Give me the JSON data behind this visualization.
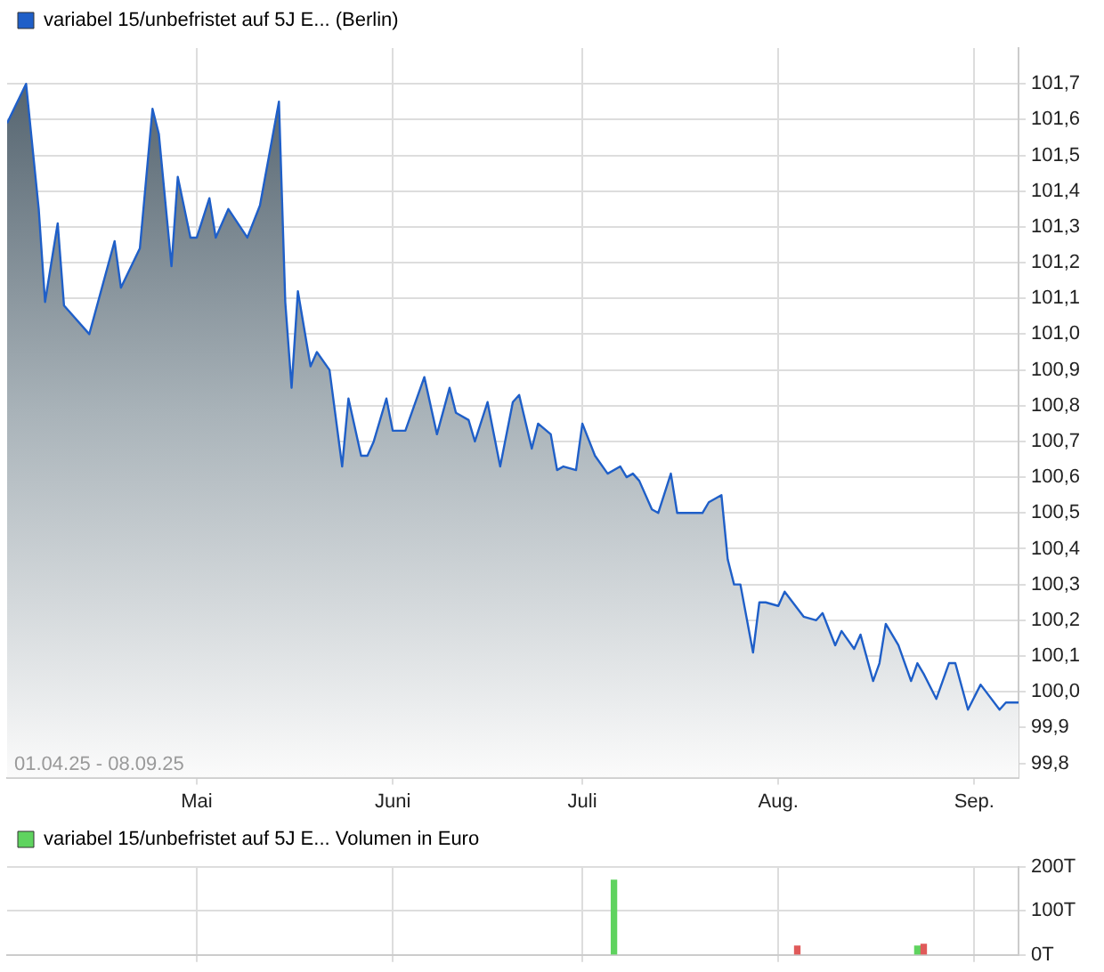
{
  "chart_data": [
    {
      "type": "area",
      "legend": "top left",
      "grid": true,
      "xlim": [
        "--04-01",
        "--09-08"
      ],
      "xticks": [
        {
          "value": "--05-01",
          "label": "Mai"
        },
        {
          "value": "--06-01",
          "label": "Juni"
        },
        {
          "value": "--07-01",
          "label": "Juli"
        },
        {
          "value": "--08-01",
          "label": "Aug."
        },
        {
          "value": "--09-01",
          "label": "Sep."
        }
      ],
      "ylim": [
        99.76,
        101.8
      ],
      "yticks": [
        {
          "value": 99.8,
          "label": "99,8"
        },
        {
          "value": 99.9,
          "label": "99,9"
        },
        {
          "value": 100.0,
          "label": "100,0"
        },
        {
          "value": 100.1,
          "label": "100,1"
        },
        {
          "value": 100.2,
          "label": "100,2"
        },
        {
          "value": 100.3,
          "label": "100,3"
        },
        {
          "value": 100.4,
          "label": "100,4"
        },
        {
          "value": 100.5,
          "label": "100,5"
        },
        {
          "value": 100.6,
          "label": "100,6"
        },
        {
          "value": 100.7,
          "label": "100,7"
        },
        {
          "value": 100.8,
          "label": "100,8"
        },
        {
          "value": 100.9,
          "label": "100,9"
        },
        {
          "value": 101.0,
          "label": "101,0"
        },
        {
          "value": 101.1,
          "label": "101,1"
        },
        {
          "value": 101.2,
          "label": "101,2"
        },
        {
          "value": 101.3,
          "label": "101,3"
        },
        {
          "value": 101.4,
          "label": "101,4"
        },
        {
          "value": 101.5,
          "label": "101,5"
        },
        {
          "value": 101.6,
          "label": "101,6"
        },
        {
          "value": 101.7,
          "label": "101,7"
        }
      ],
      "annotations": [
        "01.04.25 - 08.09.25"
      ],
      "x": [
        "--04-01",
        "--04-04",
        "--04-06",
        "--04-07",
        "--04-09",
        "--04-10",
        "--04-14",
        "--04-18",
        "--04-19",
        "--04-22",
        "--04-24",
        "--04-25",
        "--04-27",
        "--04-28",
        "--04-30",
        "--05-01",
        "--05-03",
        "--05-04",
        "--05-06",
        "--05-09",
        "--05-11",
        "--05-14",
        "--05-15",
        "--05-16",
        "--05-17",
        "--05-19",
        "--05-20",
        "--05-22",
        "--05-24",
        "--05-25",
        "--05-27",
        "--05-28",
        "--05-29",
        "--05-31",
        "--06-01",
        "--06-03",
        "--06-06",
        "--06-08",
        "--06-10",
        "--06-11",
        "--06-13",
        "--06-14",
        "--06-16",
        "--06-18",
        "--06-20",
        "--06-21",
        "--06-23",
        "--06-24",
        "--06-26",
        "--06-27",
        "--06-28",
        "--06-30",
        "--07-01",
        "--07-03",
        "--07-05",
        "--07-07",
        "--07-08",
        "--07-09",
        "--07-10",
        "--07-12",
        "--07-13",
        "--07-15",
        "--07-16",
        "--07-20",
        "--07-21",
        "--07-23",
        "--07-24",
        "--07-25",
        "--07-26",
        "--07-28",
        "--07-29",
        "--07-30",
        "--08-01",
        "--08-02",
        "--08-05",
        "--08-07",
        "--08-08",
        "--08-10",
        "--08-11",
        "--08-13",
        "--08-14",
        "--08-16",
        "--08-17",
        "--08-18",
        "--08-20",
        "--08-22",
        "--08-23",
        "--08-24",
        "--08-26",
        "--08-28",
        "--08-29",
        "--08-31",
        "--09-02",
        "--09-05",
        "--09-06",
        "--09-08"
      ],
      "series": [
        {
          "name": "variabel 15/unbefristet auf 5J E... (Berlin)",
          "color": "#1f5fc8",
          "values": [
            101.59,
            101.7,
            101.35,
            101.09,
            101.31,
            101.08,
            101.0,
            101.26,
            101.13,
            101.24,
            101.63,
            101.56,
            101.19,
            101.44,
            101.27,
            101.27,
            101.38,
            101.27,
            101.35,
            101.27,
            101.36,
            101.65,
            101.09,
            100.85,
            101.12,
            100.91,
            100.95,
            100.9,
            100.63,
            100.82,
            100.66,
            100.66,
            100.7,
            100.82,
            100.73,
            100.73,
            100.88,
            100.72,
            100.85,
            100.78,
            100.76,
            100.7,
            100.81,
            100.63,
            100.81,
            100.83,
            100.68,
            100.75,
            100.72,
            100.62,
            100.63,
            100.62,
            100.75,
            100.66,
            100.61,
            100.63,
            100.6,
            100.61,
            100.59,
            100.51,
            100.5,
            100.61,
            100.5,
            100.5,
            100.53,
            100.55,
            100.37,
            100.3,
            100.3,
            100.11,
            100.25,
            100.25,
            100.24,
            100.28,
            100.21,
            100.2,
            100.22,
            100.13,
            100.17,
            100.12,
            100.16,
            100.03,
            100.08,
            100.19,
            100.13,
            100.03,
            100.08,
            100.05,
            99.98,
            100.08,
            100.08,
            99.95,
            100.02,
            99.95,
            99.97,
            99.97
          ]
        }
      ]
    },
    {
      "type": "bar",
      "legend": "top left",
      "grid": true,
      "tick_labels": "y",
      "xlim": [
        "--04-01",
        "--09-08"
      ],
      "xticks": [
        {
          "value": "--05-01",
          "label": null
        },
        {
          "value": "--06-01",
          "label": null
        },
        {
          "value": "--07-01",
          "label": null
        },
        {
          "value": "--08-01",
          "label": null
        },
        {
          "value": "--09-01",
          "label": null
        }
      ],
      "ylim": [
        0,
        200
      ],
      "yticks": [
        {
          "value": 0,
          "label": "0T"
        },
        {
          "value": 100,
          "label": "100T"
        },
        {
          "value": 200,
          "label": "200T"
        }
      ],
      "x": [
        "--07-06",
        "--08-04",
        "--08-23",
        "--08-24"
      ],
      "series": [
        {
          "name": "variabel 15/unbefristet auf 5J E... Volumen in Euro",
          "color": "#5fd35f",
          "colors": [
            "#5fd35f",
            "#e05a5a",
            "#5fd35f",
            "#e05a5a"
          ],
          "values": [
            170,
            20,
            20,
            24
          ]
        }
      ]
    }
  ]
}
